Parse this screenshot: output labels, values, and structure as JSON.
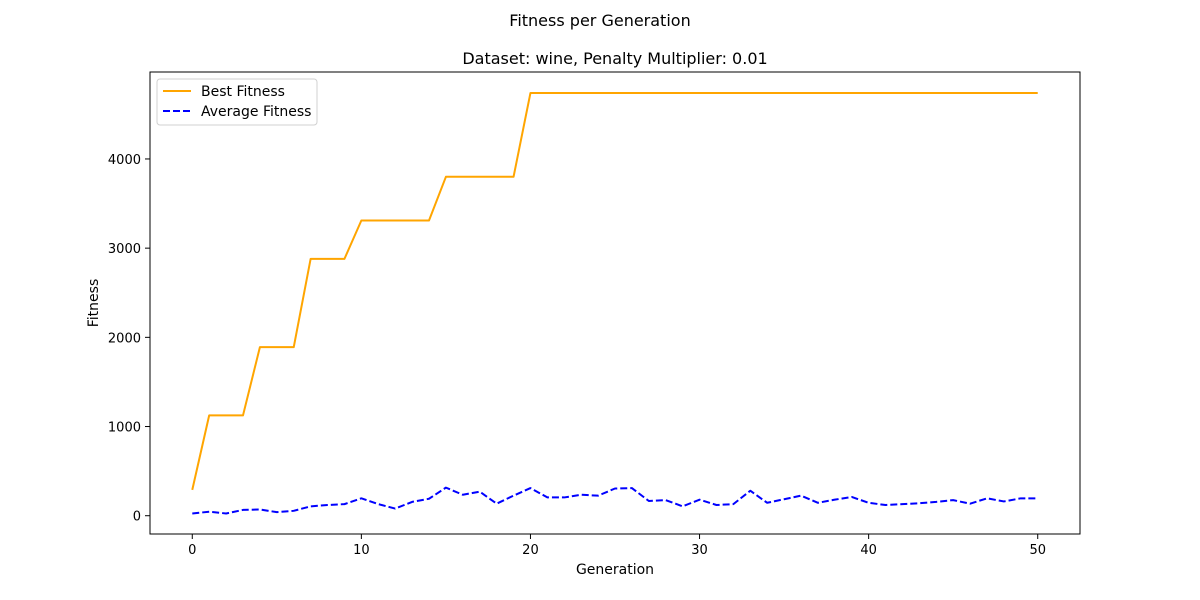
{
  "chart_data": {
    "type": "line",
    "suptitle": "Fitness per Generation",
    "title": "Dataset: wine, Penalty Multiplier: 0.01",
    "xlabel": "Generation",
    "ylabel": "Fitness",
    "xlim": [
      -2.5,
      52.5
    ],
    "ylim": [
      -205,
      4975
    ],
    "xticks": [
      0,
      10,
      20,
      30,
      40,
      50
    ],
    "yticks": [
      0,
      1000,
      2000,
      3000,
      4000
    ],
    "grid": false,
    "legend_position": "top-left",
    "x": [
      0,
      1,
      2,
      3,
      4,
      5,
      6,
      7,
      8,
      9,
      10,
      11,
      12,
      13,
      14,
      15,
      16,
      17,
      18,
      19,
      20,
      21,
      22,
      23,
      24,
      25,
      26,
      27,
      28,
      29,
      30,
      31,
      32,
      33,
      34,
      35,
      36,
      37,
      38,
      39,
      40,
      41,
      42,
      43,
      44,
      45,
      46,
      47,
      48,
      49,
      50
    ],
    "series": [
      {
        "name": "Best Fitness",
        "color": "#ffa500",
        "style": "solid",
        "values": [
          290,
          1125,
          1125,
          1125,
          1890,
          1890,
          1890,
          2880,
          2880,
          2880,
          3310,
          3310,
          3310,
          3310,
          3310,
          3800,
          3800,
          3800,
          3800,
          3800,
          4740,
          4740,
          4740,
          4740,
          4740,
          4740,
          4740,
          4740,
          4740,
          4740,
          4740,
          4740,
          4740,
          4740,
          4740,
          4740,
          4740,
          4740,
          4740,
          4740,
          4740,
          4740,
          4740,
          4740,
          4740,
          4740,
          4740,
          4740,
          4740,
          4740,
          4740
        ]
      },
      {
        "name": "Average Fitness",
        "color": "#0000ff",
        "style": "dashed",
        "values": [
          25,
          45,
          25,
          65,
          70,
          40,
          55,
          105,
          120,
          130,
          195,
          130,
          80,
          155,
          190,
          315,
          235,
          270,
          135,
          225,
          310,
          205,
          205,
          235,
          225,
          305,
          310,
          165,
          175,
          105,
          180,
          120,
          130,
          280,
          145,
          185,
          225,
          145,
          180,
          210,
          145,
          120,
          130,
          140,
          155,
          175,
          135,
          195,
          160,
          195,
          195
        ]
      }
    ]
  }
}
